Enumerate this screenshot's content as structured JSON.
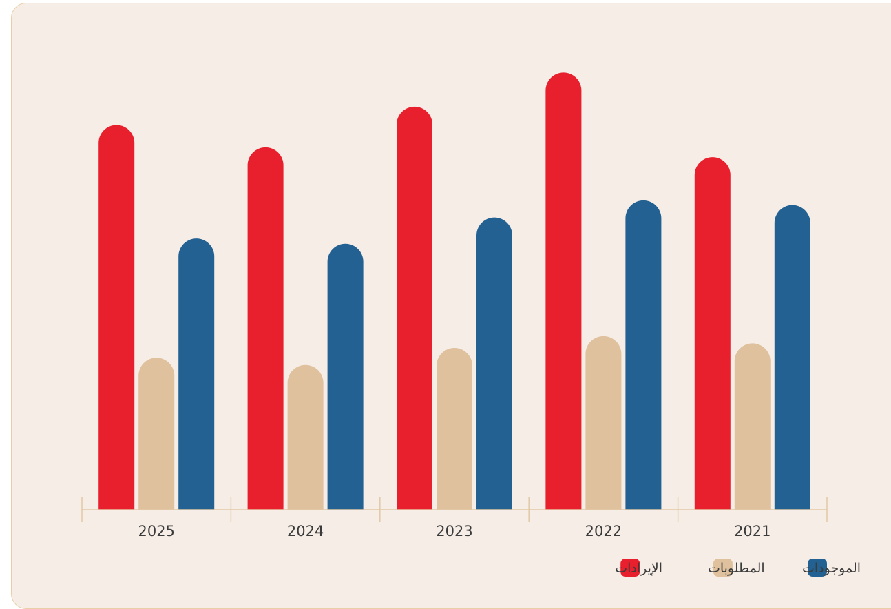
{
  "chart_data": {
    "type": "bar",
    "categories": [
      "2025",
      "2024",
      "2023",
      "2022",
      "2021"
    ],
    "series": [
      {
        "name": "الإيرادات",
        "color": "#e81f2d",
        "values": [
          587,
          553,
          615,
          667,
          538
        ]
      },
      {
        "name": "المطلوبات",
        "color": "#dfc19d",
        "values": [
          232,
          221,
          247,
          265,
          254
        ]
      },
      {
        "name": "الموجودات",
        "color": "#226192",
        "values": [
          414,
          406,
          446,
          472,
          465
        ]
      }
    ],
    "title": "",
    "xlabel": "",
    "ylabel": "",
    "ylim": [
      0,
      700
    ],
    "grid": false,
    "legend_position": "bottom-right",
    "legend_order": [
      2,
      1,
      0
    ]
  }
}
